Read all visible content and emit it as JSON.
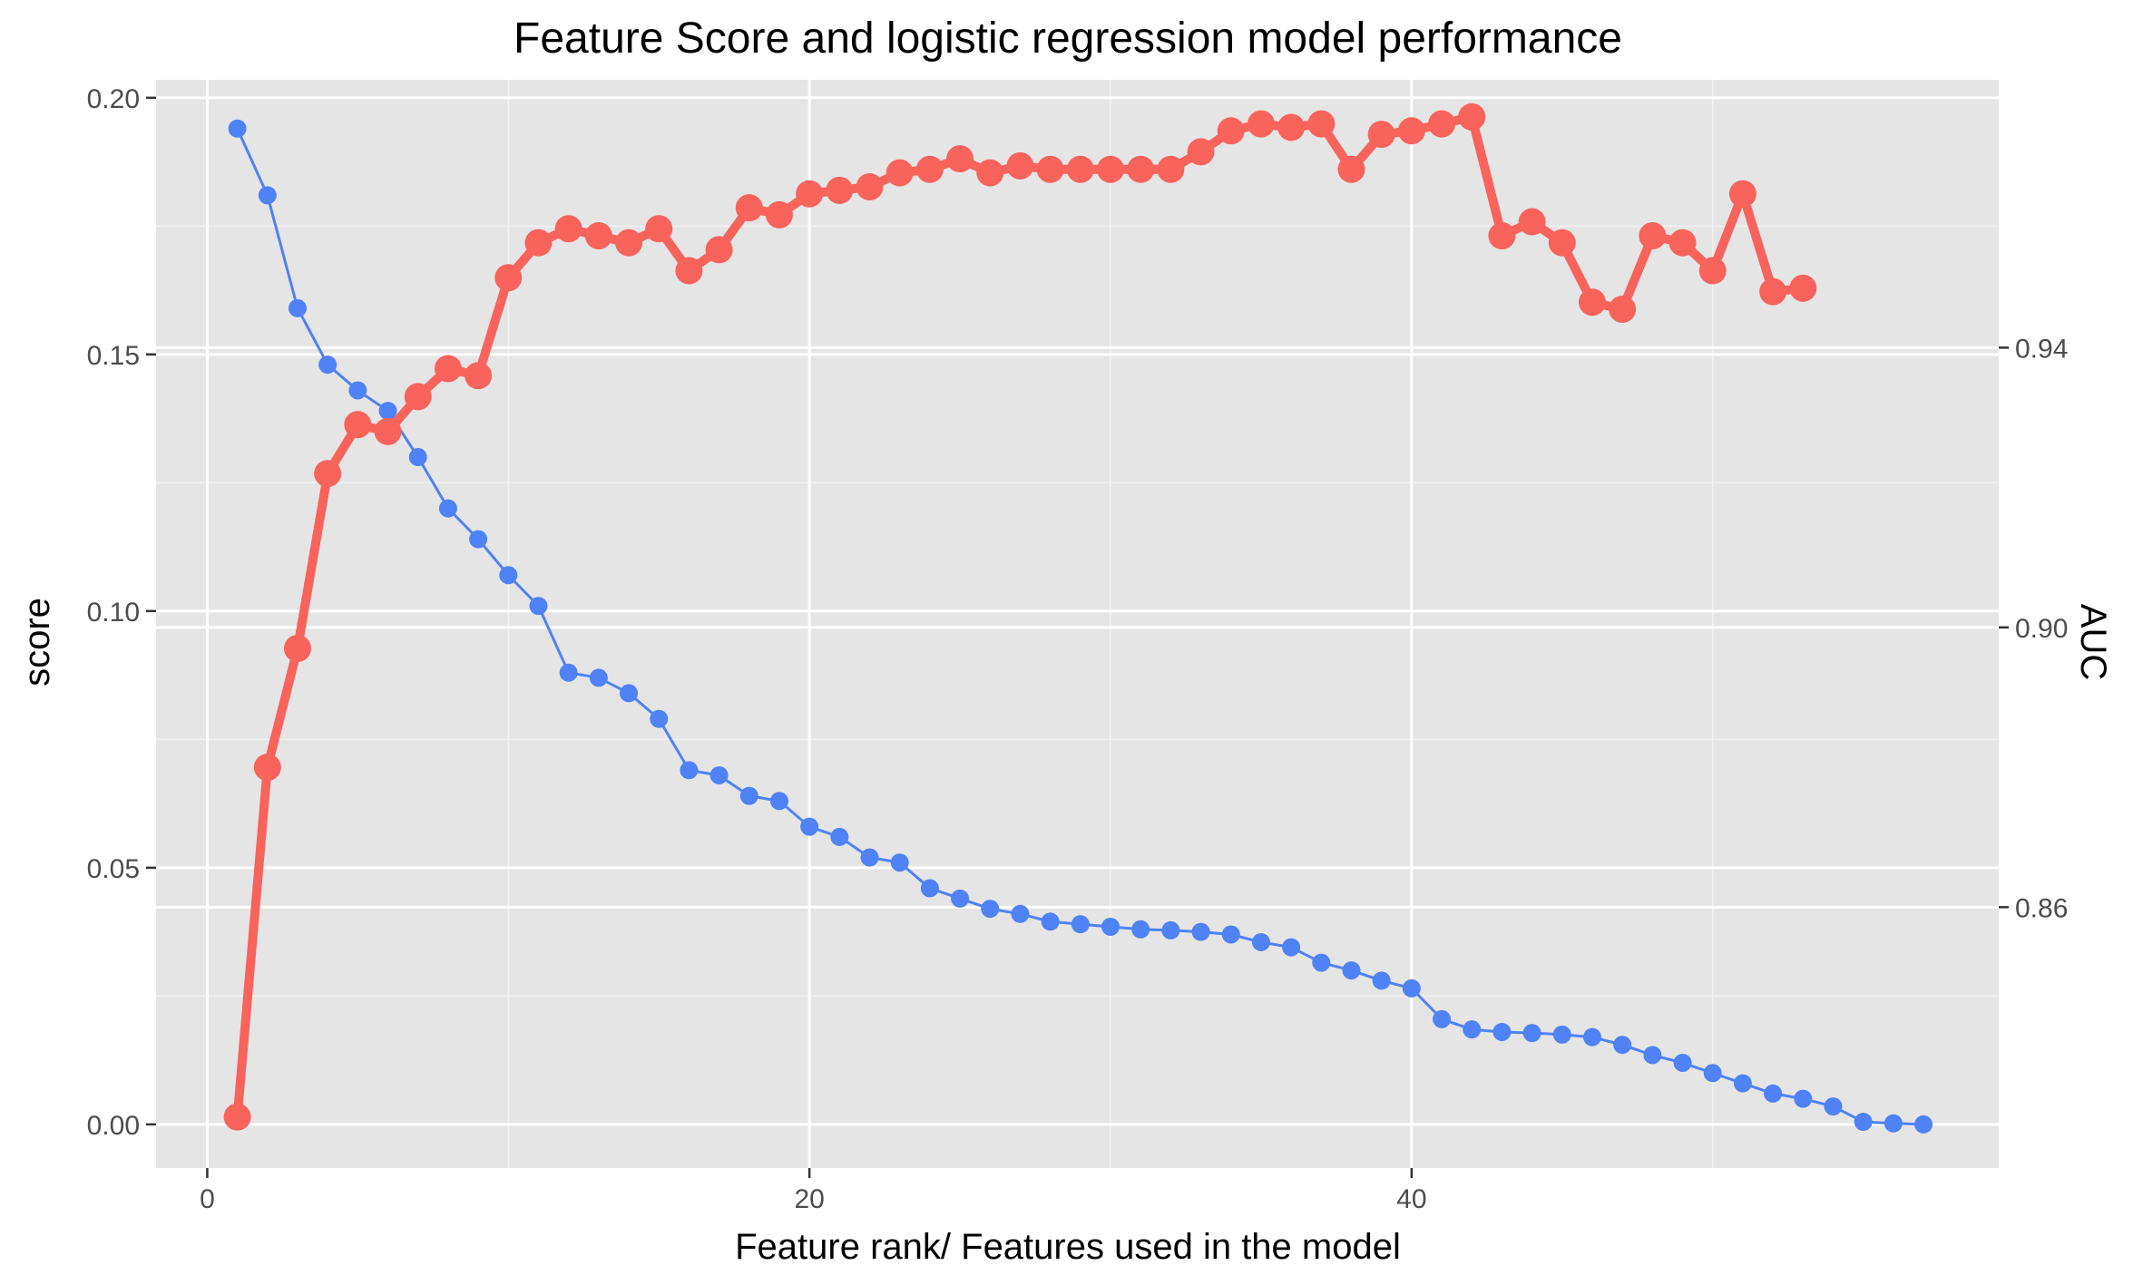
{
  "chart_data": {
    "type": "line",
    "title": "Feature Score and logistic regression model performance",
    "xlabel": "Feature rank/ Features used in the model",
    "ylabel": "score",
    "y2label": "AUC",
    "xlim": [
      -1.7,
      59.5
    ],
    "ylim": [
      -0.0085,
      0.2035
    ],
    "y2lim": [
      0.8227,
      0.9783
    ],
    "x_major_ticks": [
      0,
      20,
      40
    ],
    "x_minor_ticks": [
      10,
      30,
      50
    ],
    "y_major_ticks": [
      0.0,
      0.05,
      0.1,
      0.15,
      0.2
    ],
    "y_minor_ticks": [
      0.025,
      0.075,
      0.125,
      0.175
    ],
    "y_tick_labels": [
      "0.00",
      "0.05",
      "0.10",
      "0.15",
      "0.20"
    ],
    "y2_major_ticks": [
      0.86,
      0.9,
      0.94
    ],
    "y2_tick_labels": [
      "0.86",
      "0.90",
      "0.94"
    ],
    "x_tick_labels": [
      "0",
      "20",
      "40"
    ],
    "grid": true,
    "legend": "none",
    "background": "#e5e5e5",
    "series": [
      {
        "axis": "left",
        "color": "#4f82f4",
        "x": [
          1,
          2,
          3,
          4,
          5,
          6,
          7,
          8,
          9,
          10,
          11,
          12,
          13,
          14,
          15,
          16,
          17,
          18,
          19,
          20,
          21,
          22,
          23,
          24,
          25,
          26,
          27,
          28,
          29,
          30,
          31,
          32,
          33,
          34,
          35,
          36,
          37,
          38,
          39,
          40,
          41,
          42,
          43,
          44,
          45,
          46,
          47,
          48,
          49,
          50,
          51,
          52,
          53,
          54,
          55,
          56,
          57
        ],
        "values": [
          0.194,
          0.181,
          0.159,
          0.148,
          0.143,
          0.139,
          0.13,
          0.12,
          0.114,
          0.107,
          0.101,
          0.088,
          0.087,
          0.084,
          0.079,
          0.069,
          0.068,
          0.064,
          0.063,
          0.058,
          0.056,
          0.052,
          0.051,
          0.046,
          0.044,
          0.042,
          0.041,
          0.0395,
          0.039,
          0.0385,
          0.038,
          0.0378,
          0.0375,
          0.037,
          0.0355,
          0.0345,
          0.0315,
          0.03,
          0.028,
          0.0265,
          0.0205,
          0.0185,
          0.018,
          0.0178,
          0.0175,
          0.017,
          0.0155,
          0.0135,
          0.012,
          0.01,
          0.008,
          0.006,
          0.005,
          0.0035,
          0.0005,
          0.0002,
          0.0
        ]
      },
      {
        "axis": "right",
        "color": "#f8635c",
        "x": [
          1,
          2,
          3,
          4,
          5,
          6,
          7,
          8,
          9,
          10,
          11,
          12,
          13,
          14,
          15,
          16,
          17,
          18,
          19,
          20,
          21,
          22,
          23,
          24,
          25,
          26,
          27,
          28,
          29,
          30,
          31,
          32,
          33,
          34,
          35,
          36,
          37,
          38,
          39,
          40,
          41,
          42,
          43,
          44,
          45,
          46,
          47,
          48,
          49,
          50,
          51,
          52,
          53
        ],
        "values": [
          0.83,
          0.88,
          0.897,
          0.922,
          0.929,
          0.928,
          0.933,
          0.937,
          0.936,
          0.95,
          0.955,
          0.957,
          0.956,
          0.955,
          0.957,
          0.951,
          0.954,
          0.96,
          0.959,
          0.962,
          0.9625,
          0.963,
          0.965,
          0.9655,
          0.967,
          0.965,
          0.966,
          0.9655,
          0.9655,
          0.9655,
          0.9655,
          0.9655,
          0.968,
          0.971,
          0.972,
          0.9715,
          0.972,
          0.9655,
          0.9705,
          0.971,
          0.972,
          0.973,
          0.956,
          0.958,
          0.955,
          0.9465,
          0.9455,
          0.956,
          0.955,
          0.951,
          0.962,
          0.948,
          0.9485
        ]
      }
    ]
  }
}
